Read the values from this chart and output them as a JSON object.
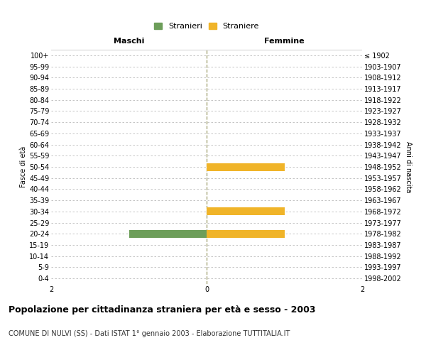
{
  "age_groups": [
    "0-4",
    "5-9",
    "10-14",
    "15-19",
    "20-24",
    "25-29",
    "30-34",
    "35-39",
    "40-44",
    "45-49",
    "50-54",
    "55-59",
    "60-64",
    "65-69",
    "70-74",
    "75-79",
    "80-84",
    "85-89",
    "90-94",
    "95-99",
    "100+"
  ],
  "birth_years": [
    "1998-2002",
    "1993-1997",
    "1988-1992",
    "1983-1987",
    "1978-1982",
    "1973-1977",
    "1968-1972",
    "1963-1967",
    "1958-1962",
    "1953-1957",
    "1948-1952",
    "1943-1947",
    "1938-1942",
    "1933-1937",
    "1928-1932",
    "1923-1927",
    "1918-1922",
    "1913-1917",
    "1908-1912",
    "1903-1907",
    "≤ 1902"
  ],
  "males": [
    0,
    0,
    0,
    0,
    1,
    0,
    0,
    0,
    0,
    0,
    0,
    0,
    0,
    0,
    0,
    0,
    0,
    0,
    0,
    0,
    0
  ],
  "females": [
    0,
    0,
    0,
    0,
    1,
    0,
    1,
    0,
    0,
    0,
    1,
    0,
    0,
    0,
    0,
    0,
    0,
    0,
    0,
    0,
    0
  ],
  "male_color": "#6d9e5a",
  "female_color": "#f0b429",
  "xlim": 2,
  "title": "Popolazione per cittadinanza straniera per età e sesso - 2003",
  "subtitle": "COMUNE DI NULVI (SS) - Dati ISTAT 1° gennaio 2003 - Elaborazione TUTTITALIA.IT",
  "ylabel_left": "Fasce di età",
  "ylabel_right": "Anni di nascita",
  "header_left": "Maschi",
  "header_right": "Femmine",
  "legend_male": "Stranieri",
  "legend_female": "Straniere",
  "bg_color": "#ffffff",
  "grid_color": "#bbbbbb",
  "bar_height": 0.7,
  "title_fontsize": 9,
  "subtitle_fontsize": 7,
  "tick_fontsize": 7,
  "header_fontsize": 8,
  "legend_fontsize": 8
}
